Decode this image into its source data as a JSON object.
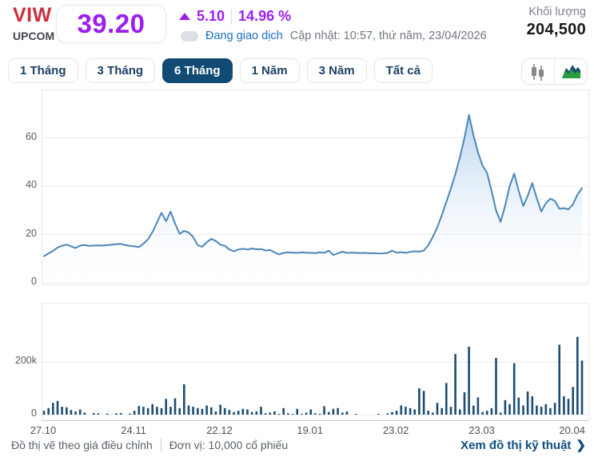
{
  "header": {
    "symbol": "VIW",
    "exchange": "UPCOM",
    "price": "39.20",
    "change": "5.10",
    "change_percent": "14.96 %",
    "status": "Đang giao dịch",
    "updated": "Cập nhật: 10:57, thứ năm, 23/04/2026",
    "volume_label": "Khối lượng",
    "volume_value": "204,500"
  },
  "toolbar": {
    "tabs": [
      {
        "label": "1 Tháng",
        "active": false
      },
      {
        "label": "3 Tháng",
        "active": false
      },
      {
        "label": "6 Tháng",
        "active": true
      },
      {
        "label": "1 Năm",
        "active": false
      },
      {
        "label": "3 Năm",
        "active": false
      },
      {
        "label": "Tất cả",
        "active": false
      }
    ],
    "chart_types": [
      {
        "name": "candlestick-chart",
        "active": false
      },
      {
        "name": "area-chart",
        "active": true
      }
    ]
  },
  "footer": {
    "note_adjusted": "Đồ thị vẽ theo giá điều chỉnh",
    "note_unit": "Đơn vị: 10,000 cổ phiếu",
    "technical_link": "Xem đồ thị kỹ thuật",
    "chevron": "❯"
  },
  "colors": {
    "accent_purple": "#9b1ff0",
    "symbol_red": "#c92f3e",
    "status_blue": "#1a6dc2",
    "tab_navy": "#114a73",
    "line_blue": "#4c86ba",
    "area_fill_top": "#b5d3ee",
    "volume_bar_navy": "#1d4d75",
    "link_blue": "#0e4d80",
    "grid_gray": "#e9ebee"
  },
  "chart_data": [
    {
      "type": "area",
      "title": "VIW adjusted price, 6 months",
      "xlabel": "",
      "ylabel": "",
      "ylim": [
        0,
        79.5
      ],
      "yticks": [
        0,
        20,
        40,
        60
      ],
      "grid": true,
      "x_labels": [
        "27.10",
        "24.11",
        "22.12",
        "19.01",
        "23.02",
        "23.03",
        "20.04"
      ],
      "x_label_indices": [
        0,
        20,
        39,
        59,
        78,
        97,
        117
      ],
      "values": [
        11.0,
        12.2,
        13.2,
        14.6,
        15.3,
        15.8,
        15.1,
        14.4,
        15.4,
        15.6,
        15.3,
        15.4,
        15.5,
        15.4,
        15.6,
        15.8,
        16.0,
        16.1,
        15.6,
        15.3,
        15.1,
        14.8,
        16.2,
        18.0,
        21.0,
        25.0,
        29.0,
        25.5,
        29.5,
        24.5,
        20.3,
        21.5,
        20.8,
        19.0,
        15.6,
        14.9,
        16.8,
        18.2,
        17.3,
        15.8,
        15.3,
        13.8,
        13.1,
        13.8,
        14.1,
        13.8,
        14.2,
        13.9,
        14.0,
        13.4,
        13.6,
        12.6,
        11.8,
        12.4,
        12.6,
        12.5,
        12.4,
        12.6,
        12.5,
        12.4,
        12.3,
        12.6,
        12.4,
        13.3,
        11.5,
        12.2,
        12.9,
        12.4,
        12.5,
        12.4,
        12.3,
        12.4,
        12.2,
        12.3,
        12.1,
        12.2,
        12.4,
        13.3,
        12.5,
        12.7,
        12.4,
        12.8,
        13.1,
        12.9,
        13.4,
        15.5,
        19.0,
        23.0,
        28.0,
        33.5,
        39.0,
        45.0,
        52.0,
        60.0,
        69.5,
        61.0,
        54.0,
        48.5,
        45.5,
        38.0,
        30.0,
        25.2,
        32.0,
        40.0,
        45.2,
        38.0,
        31.8,
        36.0,
        41.3,
        35.0,
        29.5,
        33.0,
        34.8,
        33.9,
        30.6,
        30.9,
        30.4,
        32.5,
        36.5,
        39.2
      ]
    },
    {
      "type": "bar",
      "title": "Volume (thousands of shares)",
      "xlabel": "",
      "ylabel": "",
      "ylim": [
        0,
        410
      ],
      "yticks": [
        {
          "v": 0,
          "label": "0"
        },
        {
          "v": 200,
          "label": "200k"
        }
      ],
      "grid": true,
      "values": [
        15,
        25,
        45,
        52,
        30,
        28,
        18,
        12,
        20,
        8,
        0,
        6,
        5,
        0,
        4,
        0,
        5,
        6,
        0,
        4,
        15,
        33,
        30,
        25,
        40,
        30,
        25,
        60,
        30,
        62,
        25,
        115,
        35,
        30,
        25,
        22,
        35,
        28,
        12,
        38,
        25,
        18,
        10,
        15,
        22,
        20,
        10,
        12,
        30,
        5,
        8,
        12,
        3,
        25,
        5,
        3,
        22,
        3,
        8,
        20,
        5,
        3,
        32,
        10,
        22,
        25,
        8,
        12,
        0,
        3,
        0,
        0,
        0,
        0,
        3,
        0,
        5,
        10,
        15,
        35,
        30,
        25,
        20,
        100,
        90,
        15,
        8,
        45,
        25,
        120,
        30,
        230,
        20,
        85,
        258,
        35,
        65,
        10,
        15,
        25,
        215,
        8,
        55,
        40,
        195,
        65,
        35,
        88,
        70,
        35,
        30,
        40,
        25,
        45,
        265,
        70,
        60,
        105,
        295,
        205
      ]
    }
  ]
}
